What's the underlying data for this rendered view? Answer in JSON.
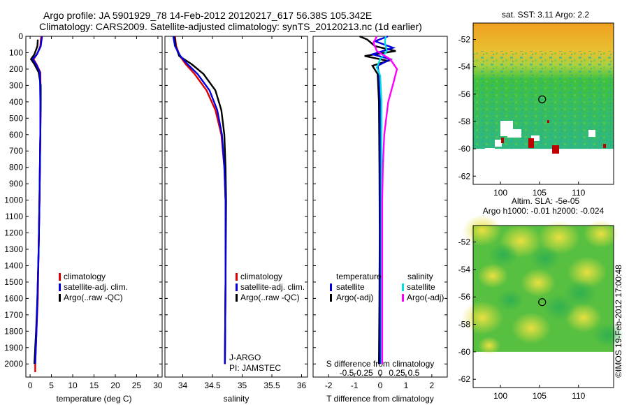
{
  "header": {
    "line1": "Argo profile: JA 5901929_78 14-Feb-2012 20120217_617 56.38S 105.342E",
    "line2": "Climatology: CARS2009. Satellite-adjusted climatology: synTS_20120213.nc (1d earlier)"
  },
  "watermark": "©IMOS 19-Feb-2012 17:00:48",
  "colors": {
    "climatology": "#e00000",
    "satellite": "#0000e0",
    "argo": "#000000",
    "sal_satellite": "#00e0e0",
    "sal_argo": "#ff00ff"
  },
  "chart_data": [
    {
      "type": "line",
      "id": "temperature",
      "xlabel": "temperature (deg C)",
      "xlim": [
        -1,
        31
      ],
      "xticks": [
        0,
        5,
        10,
        15,
        20,
        25,
        30
      ],
      "ylim": [
        2080,
        0
      ],
      "yticks": [
        0,
        100,
        200,
        300,
        400,
        500,
        600,
        700,
        800,
        900,
        1000,
        1100,
        1200,
        1300,
        1400,
        1500,
        1600,
        1700,
        1800,
        1900,
        2000
      ],
      "legend": [
        "climatology",
        "satellite-adj. clim.",
        "Argo(..raw -QC)"
      ],
      "series": [
        {
          "name": "climatology",
          "color_key": "climatology",
          "points": [
            [
              2.6,
              0
            ],
            [
              2.4,
              60
            ],
            [
              1.6,
              110
            ],
            [
              0.8,
              140
            ],
            [
              1.5,
              170
            ],
            [
              2.4,
              220
            ],
            [
              2.5,
              400
            ],
            [
              2.4,
              600
            ],
            [
              2.3,
              800
            ],
            [
              2.2,
              1000
            ],
            [
              2.0,
              1300
            ],
            [
              1.8,
              1600
            ],
            [
              1.5,
              1800
            ],
            [
              1.2,
              2000
            ],
            [
              1.2,
              2050
            ]
          ]
        },
        {
          "name": "Argo(..raw -QC)",
          "color_key": "argo",
          "points": [
            [
              1.8,
              20
            ],
            [
              1.7,
              60
            ],
            [
              1.0,
              110
            ],
            [
              0.2,
              140
            ],
            [
              1.0,
              170
            ],
            [
              2.0,
              220
            ],
            [
              2.5,
              300
            ],
            [
              2.5,
              400
            ],
            [
              2.4,
              600
            ],
            [
              2.3,
              800
            ],
            [
              2.2,
              1000
            ],
            [
              2.0,
              1300
            ],
            [
              1.7,
              1600
            ],
            [
              1.4,
              1800
            ],
            [
              1.0,
              2000
            ]
          ]
        },
        {
          "name": "satellite-adj. clim.",
          "color_key": "satellite",
          "points": [
            [
              2.8,
              0
            ],
            [
              2.5,
              60
            ],
            [
              1.6,
              110
            ],
            [
              0.6,
              140
            ],
            [
              1.4,
              170
            ],
            [
              2.3,
              220
            ],
            [
              2.4,
              400
            ],
            [
              2.4,
              600
            ],
            [
              2.3,
              800
            ],
            [
              2.2,
              1000
            ],
            [
              2.0,
              1300
            ],
            [
              1.7,
              1600
            ],
            [
              1.5,
              1800
            ],
            [
              1.2,
              2000
            ]
          ]
        }
      ]
    },
    {
      "type": "line",
      "id": "salinity",
      "xlabel": "salinity",
      "xlim": [
        33.7,
        36.1
      ],
      "xticks": [
        34,
        34.5,
        35,
        35.5,
        36
      ],
      "xticklabels": [
        "34",
        "34.5",
        "35",
        "35.5",
        "36"
      ],
      "ylim": [
        2080,
        0
      ],
      "legend": [
        "climatology",
        "satellite-adj. clim.",
        "Argo(..raw -QC)"
      ],
      "annotation": [
        "J-ARGO",
        "PI: JAMSTEC"
      ],
      "series": [
        {
          "name": "climatology",
          "color_key": "climatology",
          "points": [
            [
              33.87,
              0
            ],
            [
              33.89,
              60
            ],
            [
              33.95,
              120
            ],
            [
              34.05,
              170
            ],
            [
              34.2,
              230
            ],
            [
              34.4,
              330
            ],
            [
              34.55,
              450
            ],
            [
              34.65,
              600
            ],
            [
              34.7,
              800
            ],
            [
              34.72,
              1000
            ],
            [
              34.72,
              1500
            ],
            [
              34.71,
              2000
            ]
          ]
        },
        {
          "name": "Argo(..raw -QC)",
          "color_key": "argo",
          "points": [
            [
              33.86,
              0
            ],
            [
              33.88,
              60
            ],
            [
              33.94,
              120
            ],
            [
              34.15,
              170
            ],
            [
              34.35,
              230
            ],
            [
              34.55,
              330
            ],
            [
              34.65,
              450
            ],
            [
              34.7,
              600
            ],
            [
              34.72,
              800
            ],
            [
              34.73,
              1000
            ],
            [
              34.72,
              1500
            ],
            [
              34.71,
              2000
            ]
          ]
        },
        {
          "name": "satellite-adj. clim.",
          "color_key": "satellite",
          "points": [
            [
              33.84,
              0
            ],
            [
              33.87,
              60
            ],
            [
              33.96,
              120
            ],
            [
              34.08,
              170
            ],
            [
              34.25,
              230
            ],
            [
              34.45,
              330
            ],
            [
              34.58,
              450
            ],
            [
              34.66,
              600
            ],
            [
              34.7,
              800
            ],
            [
              34.72,
              1000
            ],
            [
              34.72,
              1500
            ],
            [
              34.71,
              2000
            ]
          ]
        }
      ]
    },
    {
      "type": "line",
      "id": "difference",
      "xlabel": "T difference from climatology",
      "xlim": [
        -2.6,
        2.6
      ],
      "xticks": [
        -2,
        -1,
        0,
        1,
        2
      ],
      "top_label": "S difference from climatology",
      "sticks": [
        -0.5,
        -0.25,
        0,
        0.25,
        0.5
      ],
      "sticklabels": [
        "-0.5",
        "-0.25",
        "0",
        "0.25",
        "0.5"
      ],
      "ylim": [
        2080,
        0
      ],
      "legend_groups": [
        {
          "title": "temperature",
          "items": [
            {
              "label": "satellite",
              "color_key": "satellite"
            },
            {
              "label": "Argo(-adj)",
              "color_key": "argo"
            }
          ]
        },
        {
          "title": "salinity",
          "items": [
            {
              "label": "satellite",
              "color_key": "sal_satellite"
            },
            {
              "label": "Argo(-adj)",
              "color_key": "sal_argo"
            }
          ]
        }
      ],
      "series": [
        {
          "name": "Argo T",
          "color_key": "argo",
          "points": [
            [
              -0.8,
              0
            ],
            [
              -0.5,
              20
            ],
            [
              -0.2,
              60
            ],
            [
              0.6,
              90
            ],
            [
              -0.6,
              120
            ],
            [
              0.3,
              150
            ],
            [
              -0.3,
              180
            ],
            [
              -0.1,
              230
            ],
            [
              -0.05,
              400
            ],
            [
              -0.03,
              800
            ],
            [
              -0.02,
              1200
            ],
            [
              -0.03,
              1600
            ],
            [
              -0.05,
              2000
            ]
          ]
        },
        {
          "name": "sat T",
          "color_key": "satellite",
          "points": [
            [
              0.3,
              0
            ],
            [
              -0.2,
              30
            ],
            [
              0.5,
              70
            ],
            [
              -0.3,
              110
            ],
            [
              0.4,
              140
            ],
            [
              -0.1,
              180
            ],
            [
              -0.05,
              230
            ],
            [
              0.0,
              400
            ],
            [
              0.0,
              800
            ],
            [
              0.0,
              1200
            ],
            [
              0.0,
              1600
            ],
            [
              0.0,
              2000
            ]
          ]
        },
        {
          "name": "sat S",
          "color_key": "sal_satellite",
          "points": [
            [
              0.08,
              0
            ],
            [
              0.07,
              40
            ],
            [
              0.1,
              90
            ],
            [
              0.0,
              140
            ],
            [
              -0.05,
              190
            ],
            [
              0.0,
              240
            ],
            [
              0.02,
              400
            ],
            [
              0.02,
              800
            ],
            [
              0.02,
              1200
            ],
            [
              0.02,
              1600
            ],
            [
              0.02,
              2000
            ]
          ]
        },
        {
          "name": "Argo S",
          "color_key": "sal_argo",
          "points": [
            [
              -0.05,
              0
            ],
            [
              -0.1,
              40
            ],
            [
              -0.05,
              90
            ],
            [
              0.15,
              140
            ],
            [
              0.25,
              200
            ],
            [
              0.2,
              280
            ],
            [
              0.12,
              400
            ],
            [
              0.06,
              600
            ],
            [
              0.04,
              800
            ],
            [
              0.03,
              1000
            ],
            [
              0.03,
              1500
            ],
            [
              0.03,
              2000
            ]
          ]
        }
      ]
    },
    {
      "type": "heatmap",
      "id": "sst_map",
      "title": "sat. SST: 3.11 Argo: 2.2",
      "xlim": [
        96.5,
        114.5
      ],
      "ylim": [
        -62.6,
        -50.8
      ],
      "xticks": [
        100,
        105,
        110
      ],
      "yticks": [
        -52,
        -54,
        -56,
        -58,
        -60,
        -62
      ],
      "data_extent_lat": [
        -60,
        -50.8
      ],
      "marker": {
        "lon": 105.342,
        "lat": -56.38
      }
    },
    {
      "type": "heatmap",
      "id": "sla_map",
      "title": "Altim. SLA: -5e-05",
      "subtitle": "Argo h1000: -0.01 h2000: -0.024",
      "xlim": [
        96.5,
        114.5
      ],
      "ylim": [
        -62.6,
        -50.8
      ],
      "xticks": [
        100,
        105,
        110
      ],
      "yticks": [
        -52,
        -54,
        -56,
        -58,
        -60,
        -62
      ],
      "data_extent_lat": [
        -60,
        -50.8
      ],
      "marker": {
        "lon": 105.342,
        "lat": -56.38
      }
    }
  ]
}
